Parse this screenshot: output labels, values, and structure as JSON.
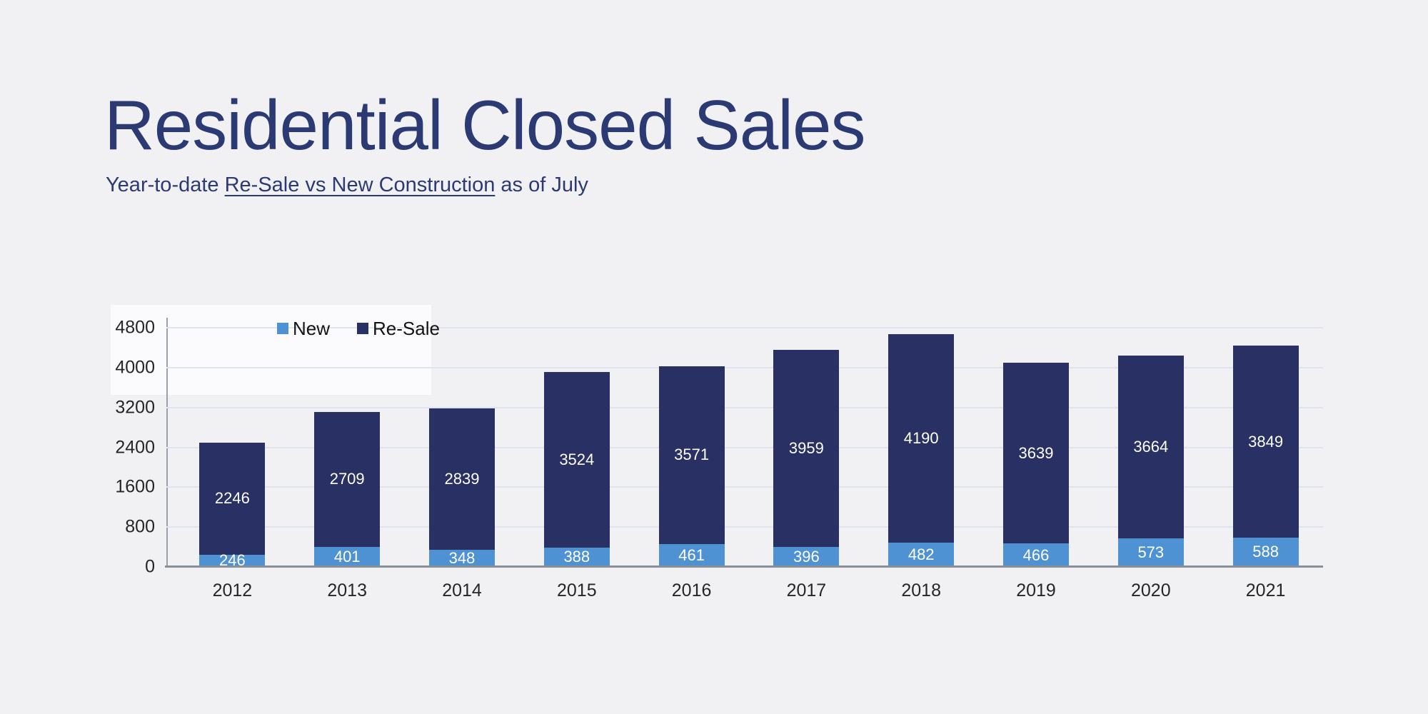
{
  "page": {
    "background": "#f1f1f4"
  },
  "header": {
    "title": "Residential Closed Sales",
    "subtitle_prefix": "Year-to-date ",
    "subtitle_underlined": "Re-Sale vs New Construction",
    "subtitle_suffix": " as of July",
    "text_color": "#2c3a74"
  },
  "chart_data": {
    "type": "bar",
    "stacked": true,
    "title": "Residential Closed Sales",
    "subtitle": "Year-to-date Re-Sale vs New Construction as of July",
    "categories": [
      "2012",
      "2013",
      "2014",
      "2015",
      "2016",
      "2017",
      "2018",
      "2019",
      "2020",
      "2021"
    ],
    "series": [
      {
        "name": "New",
        "color": "#4f92d3",
        "values": [
          246,
          401,
          348,
          388,
          461,
          396,
          482,
          466,
          573,
          588
        ]
      },
      {
        "name": "Re-Sale",
        "color": "#283064",
        "values": [
          2246,
          2709,
          2839,
          3524,
          3571,
          3959,
          4190,
          3639,
          3664,
          3849
        ]
      }
    ],
    "ylim": [
      0,
      4800
    ],
    "yticks": [
      0,
      800,
      1600,
      2400,
      3200,
      4000,
      4800
    ],
    "grid": "horizontal",
    "gridline_color": "#dde3ef",
    "axis_line_color": "#8a9097",
    "tick_label_color": "#262626",
    "value_label_color": "#ffffff",
    "legend_position": "top-left-inside",
    "value_labels": "inside"
  }
}
